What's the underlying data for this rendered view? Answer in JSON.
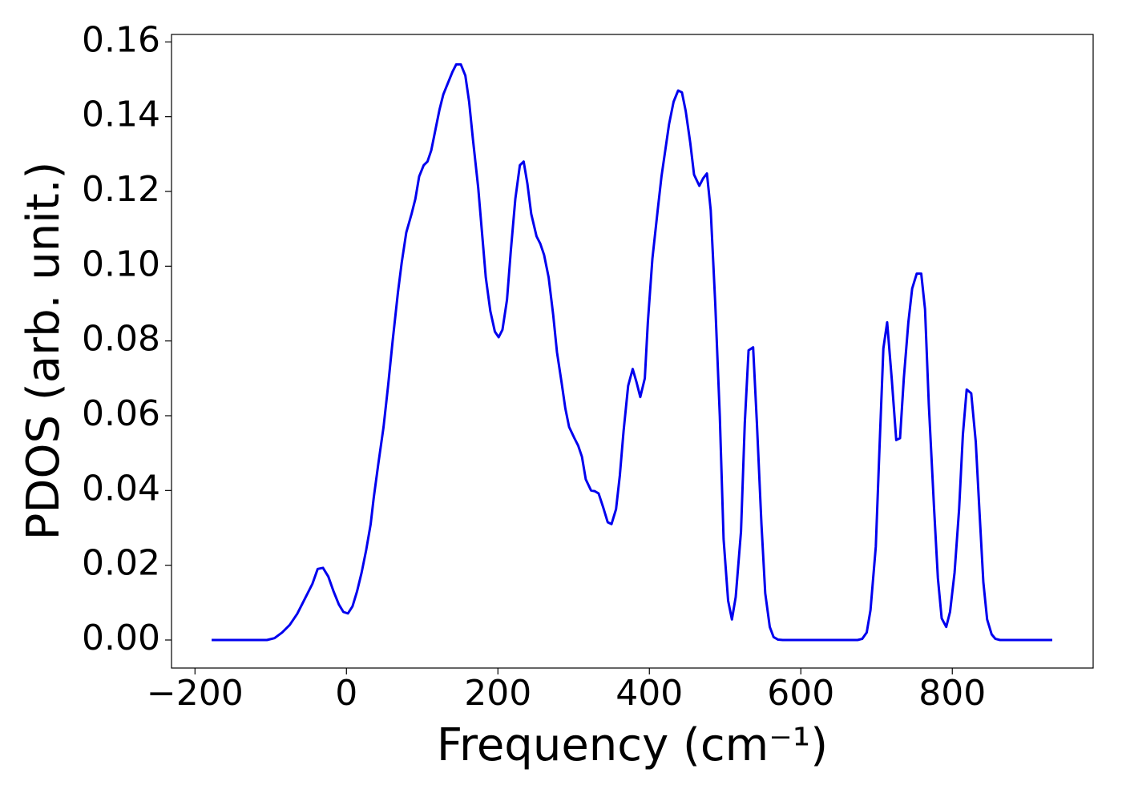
{
  "chart_data": {
    "type": "line",
    "x_label": "Frequency (cm⁻¹)",
    "y_label": "PDOS (arb. unit.)",
    "xlim": [
      -231,
      986
    ],
    "ylim": [
      -0.0075,
      0.162
    ],
    "xticks": [
      {
        "value": -200,
        "label": "−200"
      },
      0,
      200,
      400,
      600,
      800
    ],
    "yticks": [
      {
        "value": 0,
        "label": "0.00"
      },
      {
        "value": 0.02,
        "label": "0.02"
      },
      {
        "value": 0.04,
        "label": "0.04"
      },
      {
        "value": 0.06,
        "label": "0.06"
      },
      {
        "value": 0.08,
        "label": "0.08"
      },
      {
        "value": 0.1,
        "label": "0.10"
      },
      {
        "value": 0.12,
        "label": "0.12"
      },
      {
        "value": 0.14,
        "label": "0.14"
      },
      {
        "value": 0.16,
        "label": "0.16"
      }
    ],
    "series": [
      {
        "color": "#0000ee",
        "x": [
          -178,
          -105,
          -95,
          -85,
          -75,
          -65,
          -55,
          -45,
          -38,
          -31,
          -24,
          -17,
          -10,
          -4,
          2,
          8,
          14,
          20,
          26,
          32,
          36,
          42,
          49,
          55,
          61,
          68,
          73,
          79,
          86,
          91,
          96,
          102,
          107,
          112,
          117,
          123,
          128,
          134,
          140,
          145,
          151,
          157,
          162,
          167,
          174,
          179,
          184,
          190,
          196,
          201,
          206,
          212,
          217,
          223,
          229,
          234,
          239,
          244,
          251,
          256,
          261,
          267,
          273,
          278,
          284,
          289,
          294,
          301,
          306,
          311,
          316,
          323,
          328,
          333,
          339,
          345,
          350,
          356,
          361,
          366,
          372,
          378,
          383,
          388,
          394,
          398,
          404,
          411,
          416,
          421,
          426,
          432,
          438,
          443,
          448,
          454,
          459,
          466,
          471,
          476,
          481,
          487,
          493,
          498,
          504,
          509,
          514,
          521,
          526,
          531,
          537,
          542,
          548,
          553,
          559,
          564,
          570,
          576,
          675,
          681,
          687,
          692,
          699,
          704,
          709,
          714,
          720,
          726,
          731,
          736,
          742,
          747,
          753,
          759,
          764,
          769,
          776,
          781,
          786,
          792,
          797,
          803,
          809,
          814,
          819,
          825,
          831,
          836,
          841,
          846,
          852,
          857,
          863,
          932
        ],
        "values": [
          0,
          0,
          0.0005,
          0.002,
          0.004,
          0.007,
          0.011,
          0.015,
          0.019,
          0.0193,
          0.017,
          0.013,
          0.0095,
          0.0075,
          0.0071,
          0.009,
          0.013,
          0.018,
          0.024,
          0.031,
          0.038,
          0.047,
          0.057,
          0.068,
          0.08,
          0.093,
          0.101,
          0.109,
          0.114,
          0.118,
          0.124,
          0.127,
          0.128,
          0.131,
          0.136,
          0.142,
          0.146,
          0.149,
          0.152,
          0.154,
          0.154,
          0.151,
          0.144,
          0.134,
          0.121,
          0.109,
          0.097,
          0.088,
          0.0825,
          0.081,
          0.083,
          0.091,
          0.104,
          0.118,
          0.127,
          0.128,
          0.122,
          0.114,
          0.108,
          0.106,
          0.103,
          0.097,
          0.087,
          0.077,
          0.069,
          0.062,
          0.057,
          0.054,
          0.052,
          0.049,
          0.043,
          0.04,
          0.0398,
          0.0392,
          0.0355,
          0.0315,
          0.031,
          0.035,
          0.044,
          0.056,
          0.068,
          0.0725,
          0.069,
          0.065,
          0.07,
          0.085,
          0.102,
          0.115,
          0.124,
          0.131,
          0.138,
          0.144,
          0.147,
          0.1465,
          0.1415,
          0.133,
          0.1245,
          0.1215,
          0.1235,
          0.1248,
          0.115,
          0.09,
          0.06,
          0.027,
          0.0105,
          0.0055,
          0.0115,
          0.029,
          0.058,
          0.0775,
          0.0783,
          0.058,
          0.031,
          0.0125,
          0.0035,
          0.0008,
          0.0001,
          0,
          0,
          0.0003,
          0.002,
          0.008,
          0.025,
          0.052,
          0.078,
          0.085,
          0.07,
          0.0535,
          0.054,
          0.07,
          0.085,
          0.094,
          0.098,
          0.098,
          0.0885,
          0.063,
          0.035,
          0.0165,
          0.0058,
          0.0035,
          0.0075,
          0.018,
          0.035,
          0.055,
          0.067,
          0.066,
          0.053,
          0.034,
          0.0155,
          0.0055,
          0.0015,
          0.0003,
          0,
          0
        ]
      }
    ]
  }
}
